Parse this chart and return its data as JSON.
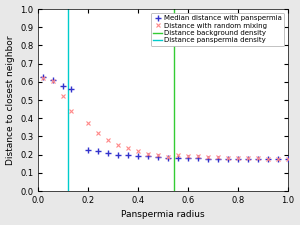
{
  "title": "",
  "xlabel": "Panspermia radius",
  "ylabel": "Distance to closest neighbor",
  "xlim": [
    0,
    1.0
  ],
  "ylim": [
    0,
    1.0
  ],
  "yticks": [
    0,
    0.1,
    0.2,
    0.3,
    0.4,
    0.5,
    0.6,
    0.7,
    0.8,
    0.9,
    1.0
  ],
  "xticks": [
    0,
    0.2,
    0.4,
    0.6,
    0.8,
    1.0
  ],
  "vline_cyan": 0.12,
  "vline_green": 0.545,
  "blue_x": [
    0.02,
    0.06,
    0.1,
    0.13,
    0.2,
    0.24,
    0.28,
    0.32,
    0.36,
    0.4,
    0.44,
    0.48,
    0.52,
    0.56,
    0.6,
    0.64,
    0.68,
    0.72,
    0.76,
    0.8,
    0.84,
    0.88,
    0.92,
    0.96,
    1.0
  ],
  "blue_y": [
    0.625,
    0.61,
    0.575,
    0.56,
    0.225,
    0.22,
    0.207,
    0.2,
    0.196,
    0.192,
    0.19,
    0.187,
    0.184,
    0.182,
    0.18,
    0.179,
    0.178,
    0.177,
    0.177,
    0.176,
    0.176,
    0.175,
    0.175,
    0.175,
    0.174
  ],
  "red_x": [
    0.02,
    0.06,
    0.1,
    0.13,
    0.2,
    0.24,
    0.28,
    0.32,
    0.36,
    0.4,
    0.44,
    0.48,
    0.52,
    0.56,
    0.6,
    0.64,
    0.68,
    0.72,
    0.76,
    0.8,
    0.84,
    0.88,
    0.92,
    0.96,
    1.0
  ],
  "red_y": [
    0.62,
    0.605,
    0.52,
    0.44,
    0.375,
    0.32,
    0.28,
    0.255,
    0.235,
    0.218,
    0.205,
    0.198,
    0.185,
    0.2,
    0.195,
    0.19,
    0.188,
    0.185,
    0.183,
    0.182,
    0.18,
    0.179,
    0.178,
    0.177,
    0.176
  ],
  "blue_color": "#3333cc",
  "red_color": "#ff8888",
  "green_color": "#33cc33",
  "cyan_color": "#00cccc",
  "legend_labels": [
    "Median distance with panspermia",
    "Distance with random mixing",
    "Distance background density",
    "Distance panspermia density"
  ],
  "bg_color": "#ffffff",
  "fig_bg_color": "#e8e8e8",
  "label_fontsize": 6.5,
  "tick_fontsize": 6,
  "legend_fontsize": 5.0
}
